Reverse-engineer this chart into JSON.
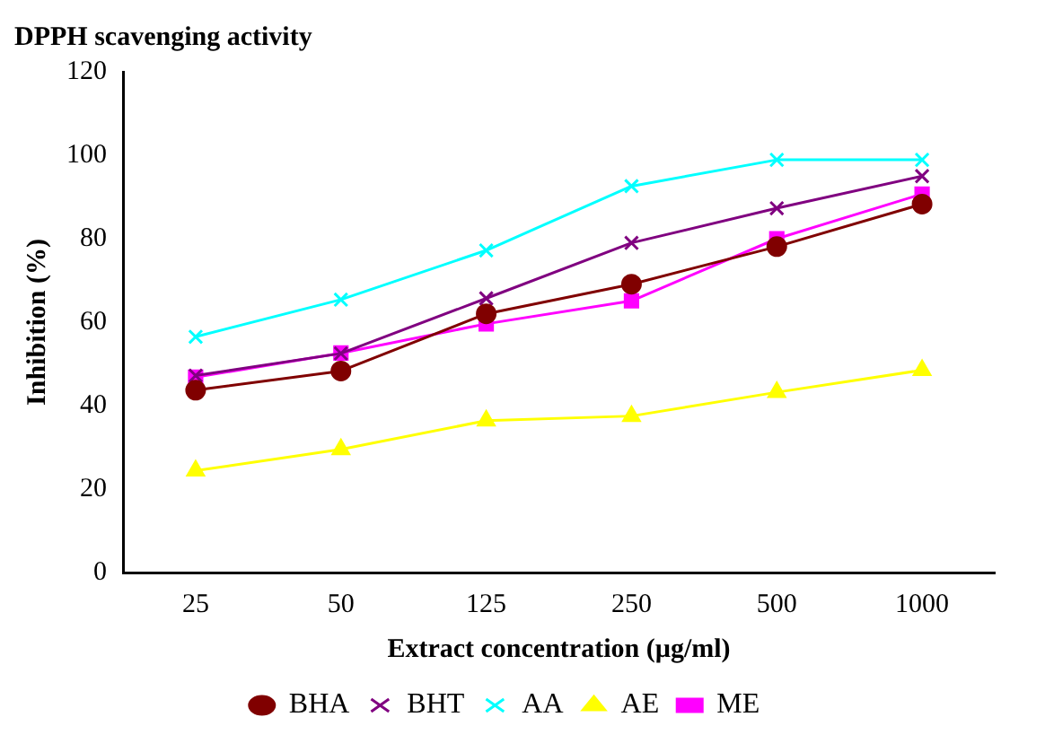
{
  "chart_data": {
    "type": "line",
    "title": "DPPH scavenging activity",
    "xlabel": "Extract concentration (µg/ml)",
    "ylabel": "Inhibition (%)",
    "categories": [
      "25",
      "50",
      "125",
      "250",
      "500",
      "1000"
    ],
    "series": [
      {
        "name": "ME",
        "color": "#ff00ff",
        "marker": "square",
        "values": [
          46.8,
          52.6,
          59.6,
          65.1,
          80,
          90.7
        ]
      },
      {
        "name": "AE",
        "color": "#ffff00",
        "marker": "triangle",
        "values": [
          24.4,
          29.5,
          36.4,
          37.5,
          43.2,
          48.5
        ]
      },
      {
        "name": "AA",
        "color": "#00ffff",
        "marker": "cross",
        "values": [
          56.5,
          65.4,
          77.2,
          92.6,
          98.9,
          98.9
        ]
      },
      {
        "name": "BHT",
        "color": "#800080",
        "marker": "cross",
        "values": [
          47.2,
          52.5,
          65.7,
          79,
          87.3,
          95
        ]
      },
      {
        "name": "BHA",
        "color": "#800000",
        "marker": "circle",
        "values": [
          43.7,
          48.3,
          62,
          69.1,
          78.1,
          88.3
        ]
      }
    ],
    "ylim": [
      0,
      120
    ],
    "yticks": [
      0,
      20,
      40,
      60,
      80,
      100,
      120
    ],
    "grid": false,
    "legend": "bottom"
  }
}
